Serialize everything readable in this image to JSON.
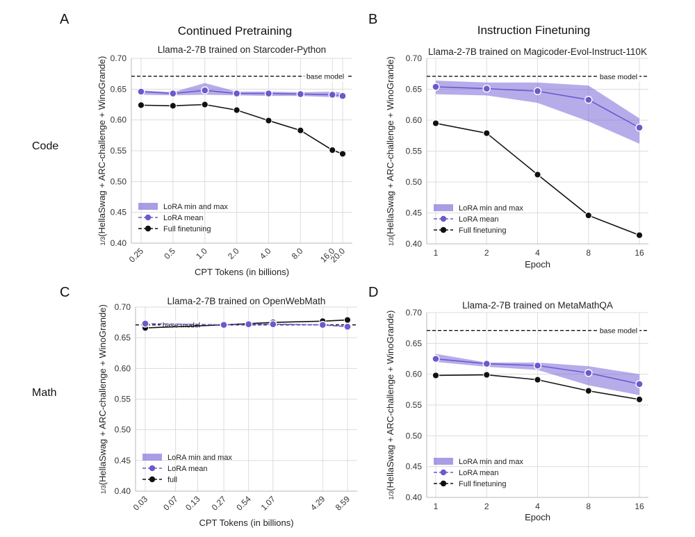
{
  "figure": {
    "column_titles": [
      "Continued Pretraining",
      "Instruction Finetuning"
    ],
    "row_labels": [
      "Code",
      "Math"
    ]
  },
  "colors": {
    "lora": "#6a5acd",
    "lora_band": "#7b68d8",
    "full": "#111111",
    "grid": "#dcdcdc",
    "axis": "#b8b8b8"
  },
  "chart_data": [
    {
      "panel": "A",
      "type": "line",
      "title": "Llama-2-7B trained on Starcoder-Python",
      "xlabel": "CPT Tokens (in billions)",
      "ylabel": "(HellaSwag + ARC-challenge + WinoGrande)",
      "ylabel_prefix_num": "1",
      "ylabel_prefix_den": "3",
      "x_scale": "log",
      "x": [
        0.25,
        0.5,
        1.0,
        2.0,
        4.0,
        8.0,
        16.0,
        20.0
      ],
      "x_tick_labels": [
        "0.25",
        "0.5",
        "1.0",
        "2.0",
        "4.0",
        "8.0",
        "16.0",
        "20.0"
      ],
      "x_tick_rotation": "rotated",
      "ylim": [
        0.4,
        0.7
      ],
      "y_ticks": [
        0.4,
        0.45,
        0.5,
        0.55,
        0.6,
        0.65,
        0.7
      ],
      "y_tick_labels": [
        "0.40",
        "0.45",
        "0.50",
        "0.55",
        "0.60",
        "0.65",
        "0.70"
      ],
      "baseline": {
        "label": "base model",
        "value": 0.671
      },
      "series": [
        {
          "name": "LoRA mean",
          "role": "lora_mean",
          "values": [
            0.646,
            0.643,
            0.648,
            0.643,
            0.643,
            0.642,
            0.641,
            0.639
          ]
        },
        {
          "name": "LoRA min and max",
          "role": "lora_band",
          "min": [
            0.641,
            0.64,
            0.641,
            0.64,
            0.639,
            0.639,
            0.637,
            0.637
          ],
          "max": [
            0.648,
            0.645,
            0.66,
            0.646,
            0.646,
            0.645,
            0.646,
            0.644
          ]
        },
        {
          "name": "Full finetuning",
          "role": "full",
          "values": [
            0.624,
            0.623,
            0.625,
            0.616,
            0.599,
            0.583,
            0.551,
            0.545
          ]
        }
      ],
      "legend_position": "lower-left",
      "grid": true
    },
    {
      "panel": "B",
      "type": "line",
      "title": "Llama-2-7B trained on Magicoder-Evol-Instruct-110K",
      "xlabel": "Epoch",
      "ylabel": "(HellaSwag + ARC-challenge + WinoGrande)",
      "ylabel_prefix_num": "1",
      "ylabel_prefix_den": "3",
      "x_scale": "log",
      "x": [
        1,
        2,
        4,
        8,
        16
      ],
      "x_tick_labels": [
        "1",
        "2",
        "4",
        "8",
        "16"
      ],
      "x_tick_rotation": "none",
      "ylim": [
        0.4,
        0.7
      ],
      "y_ticks": [
        0.4,
        0.45,
        0.5,
        0.55,
        0.6,
        0.65,
        0.7
      ],
      "y_tick_labels": [
        "0.40",
        "0.45",
        "0.50",
        "0.55",
        "0.60",
        "0.65",
        "0.70"
      ],
      "baseline": {
        "label": "base model",
        "value": 0.671
      },
      "series": [
        {
          "name": "LoRA mean",
          "role": "lora_mean",
          "values": [
            0.654,
            0.651,
            0.647,
            0.633,
            0.588
          ]
        },
        {
          "name": "LoRA min and max",
          "role": "lora_band",
          "min": [
            0.642,
            0.64,
            0.628,
            0.598,
            0.562
          ],
          "max": [
            0.664,
            0.661,
            0.661,
            0.656,
            0.603
          ]
        },
        {
          "name": "Full finetuning",
          "role": "full",
          "values": [
            0.595,
            0.579,
            0.512,
            0.446,
            0.414
          ]
        }
      ],
      "legend_position": "lower-left",
      "grid": true
    },
    {
      "panel": "C",
      "type": "line",
      "title": "Llama-2-7B trained on OpenWebMath",
      "xlabel": "CPT Tokens (in billions)",
      "ylabel": "(HellaSwag + ARC-challenge + WinoGrande)",
      "ylabel_prefix_num": "1",
      "ylabel_prefix_den": "3",
      "x_scale": "log",
      "x": [
        0.03,
        0.07,
        0.13,
        0.27,
        0.54,
        1.07,
        4.29,
        8.59
      ],
      "x_tick_labels": [
        "0.03",
        "0.07",
        "0.13",
        "0.27",
        "0.54",
        "1.07",
        "4.29",
        "8.59"
      ],
      "x_tick_rotation": "rotated",
      "ylim": [
        0.4,
        0.7
      ],
      "y_ticks": [
        0.4,
        0.45,
        0.5,
        0.55,
        0.6,
        0.65,
        0.7
      ],
      "y_tick_labels": [
        "0.40",
        "0.45",
        "0.50",
        "0.55",
        "0.60",
        "0.65",
        "0.70"
      ],
      "baseline": {
        "label": "base model",
        "value": 0.671
      },
      "series": [
        {
          "name": "LoRA mean",
          "role": "lora_mean",
          "values": [
            0.673,
            null,
            null,
            0.671,
            0.672,
            0.672,
            0.671,
            0.668
          ]
        },
        {
          "name": "LoRA min and max",
          "role": "lora_band",
          "min": [
            0.672,
            null,
            null,
            0.67,
            0.671,
            0.671,
            0.67,
            0.667
          ],
          "max": [
            0.674,
            null,
            null,
            0.672,
            0.673,
            0.673,
            0.672,
            0.669
          ]
        },
        {
          "name": "full",
          "role": "full",
          "values": [
            0.666,
            null,
            null,
            0.671,
            0.673,
            0.675,
            0.677,
            0.679
          ]
        }
      ],
      "legend_position": "lower-left",
      "grid": true
    },
    {
      "panel": "D",
      "type": "line",
      "title": "Llama-2-7B trained on MetaMathQA",
      "xlabel": "Epoch",
      "ylabel": "(HellaSwag + ARC-challenge + WinoGrande)",
      "ylabel_prefix_num": "1",
      "ylabel_prefix_den": "3",
      "x_scale": "log",
      "x": [
        1,
        2,
        4,
        8,
        16
      ],
      "x_tick_labels": [
        "1",
        "2",
        "4",
        "8",
        "16"
      ],
      "x_tick_rotation": "none",
      "ylim": [
        0.4,
        0.7
      ],
      "y_ticks": [
        0.4,
        0.45,
        0.5,
        0.55,
        0.6,
        0.65,
        0.7
      ],
      "y_tick_labels": [
        "0.40",
        "0.45",
        "0.50",
        "0.55",
        "0.60",
        "0.65",
        "0.70"
      ],
      "baseline": {
        "label": "base model",
        "value": 0.671
      },
      "series": [
        {
          "name": "LoRA mean",
          "role": "lora_mean",
          "values": [
            0.625,
            0.617,
            0.614,
            0.602,
            0.584
          ]
        },
        {
          "name": "LoRA min and max",
          "role": "lora_band",
          "min": [
            0.62,
            0.612,
            0.607,
            0.582,
            0.566
          ],
          "max": [
            0.633,
            0.619,
            0.619,
            0.613,
            0.6
          ]
        },
        {
          "name": "Full finetuning",
          "role": "full",
          "values": [
            0.598,
            0.599,
            0.591,
            0.573,
            0.559
          ]
        }
      ],
      "legend_position": "lower-left",
      "grid": true
    }
  ]
}
